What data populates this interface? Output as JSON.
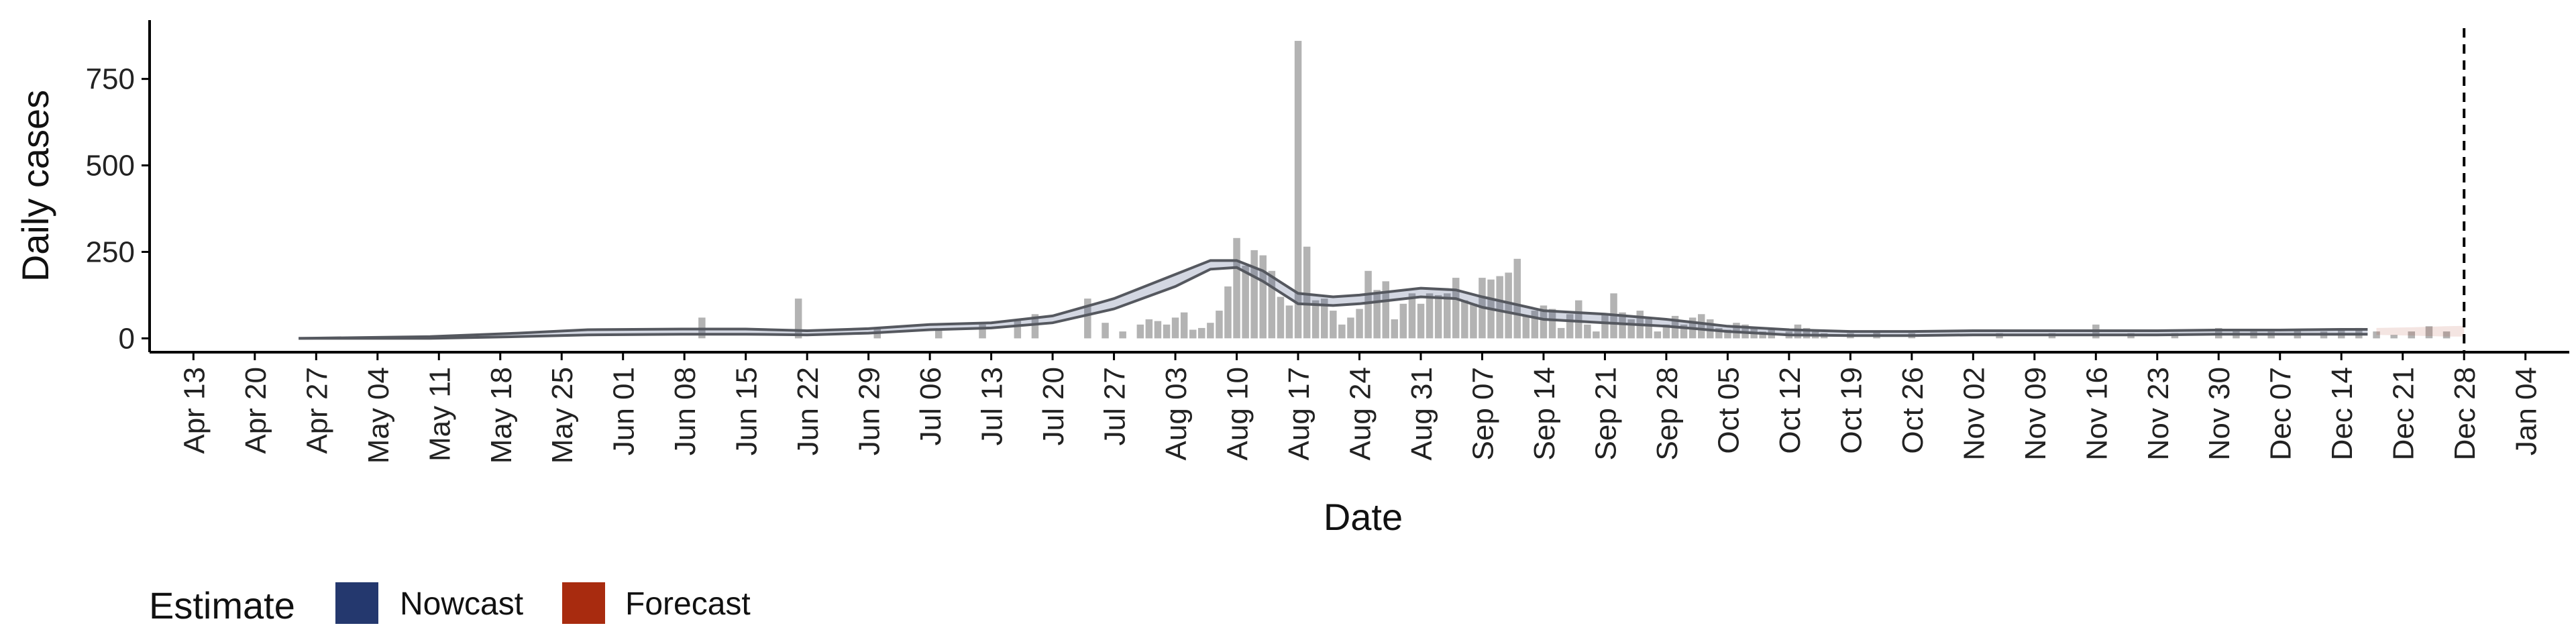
{
  "chart_data": {
    "type": "bar",
    "xlabel": "Date",
    "ylabel": "Daily cases",
    "ylim": [
      -40,
      920
    ],
    "yticks": [
      0,
      250,
      500,
      750
    ],
    "x_domain": [
      "2020-04-08",
      "2021-01-09"
    ],
    "xticks": [
      "2020-04-13",
      "2020-04-20",
      "2020-04-27",
      "2020-05-04",
      "2020-05-11",
      "2020-05-18",
      "2020-05-25",
      "2020-06-01",
      "2020-06-08",
      "2020-06-15",
      "2020-06-22",
      "2020-06-29",
      "2020-07-06",
      "2020-07-13",
      "2020-07-20",
      "2020-07-27",
      "2020-08-03",
      "2020-08-10",
      "2020-08-17",
      "2020-08-24",
      "2020-08-31",
      "2020-09-07",
      "2020-09-14",
      "2020-09-21",
      "2020-09-28",
      "2020-10-05",
      "2020-10-12",
      "2020-10-19",
      "2020-10-26",
      "2020-11-02",
      "2020-11-09",
      "2020-11-16",
      "2020-11-23",
      "2020-11-30",
      "2020-12-07",
      "2020-12-14",
      "2020-12-21",
      "2020-12-28",
      "2021-01-04"
    ],
    "xtick_labels": [
      "Apr 13",
      "Apr 20",
      "Apr 27",
      "May 04",
      "May 11",
      "May 18",
      "May 25",
      "Jun 01",
      "Jun 08",
      "Jun 15",
      "Jun 22",
      "Jun 29",
      "Jul 06",
      "Jul 13",
      "Jul 20",
      "Jul 27",
      "Aug 03",
      "Aug 10",
      "Aug 17",
      "Aug 24",
      "Aug 31",
      "Sep 07",
      "Sep 14",
      "Sep 21",
      "Sep 28",
      "Oct 05",
      "Oct 12",
      "Oct 19",
      "Oct 26",
      "Nov 02",
      "Nov 09",
      "Nov 16",
      "Nov 23",
      "Nov 30",
      "Dec 07",
      "Dec 14",
      "Dec 21",
      "Dec 28",
      "Jan 04"
    ],
    "bars": [
      {
        "date": "2020-06-10",
        "value": 60
      },
      {
        "date": "2020-06-21",
        "value": 115
      },
      {
        "date": "2020-06-30",
        "value": 30
      },
      {
        "date": "2020-07-07",
        "value": 25
      },
      {
        "date": "2020-07-12",
        "value": 40
      },
      {
        "date": "2020-07-16",
        "value": 55
      },
      {
        "date": "2020-07-18",
        "value": 70
      },
      {
        "date": "2020-07-24",
        "value": 115
      },
      {
        "date": "2020-07-26",
        "value": 45
      },
      {
        "date": "2020-07-28",
        "value": 20
      },
      {
        "date": "2020-07-30",
        "value": 40
      },
      {
        "date": "2020-07-31",
        "value": 55
      },
      {
        "date": "2020-08-01",
        "value": 50
      },
      {
        "date": "2020-08-02",
        "value": 40
      },
      {
        "date": "2020-08-03",
        "value": 60
      },
      {
        "date": "2020-08-04",
        "value": 75
      },
      {
        "date": "2020-08-05",
        "value": 25
      },
      {
        "date": "2020-08-06",
        "value": 30
      },
      {
        "date": "2020-08-07",
        "value": 45
      },
      {
        "date": "2020-08-08",
        "value": 80
      },
      {
        "date": "2020-08-09",
        "value": 150
      },
      {
        "date": "2020-08-10",
        "value": 290
      },
      {
        "date": "2020-08-11",
        "value": 210
      },
      {
        "date": "2020-08-12",
        "value": 255
      },
      {
        "date": "2020-08-13",
        "value": 240
      },
      {
        "date": "2020-08-14",
        "value": 195
      },
      {
        "date": "2020-08-15",
        "value": 120
      },
      {
        "date": "2020-08-16",
        "value": 95
      },
      {
        "date": "2020-08-17",
        "value": 860
      },
      {
        "date": "2020-08-18",
        "value": 265
      },
      {
        "date": "2020-08-19",
        "value": 110
      },
      {
        "date": "2020-08-20",
        "value": 115
      },
      {
        "date": "2020-08-21",
        "value": 80
      },
      {
        "date": "2020-08-22",
        "value": 40
      },
      {
        "date": "2020-08-23",
        "value": 60
      },
      {
        "date": "2020-08-24",
        "value": 85
      },
      {
        "date": "2020-08-25",
        "value": 195
      },
      {
        "date": "2020-08-26",
        "value": 140
      },
      {
        "date": "2020-08-27",
        "value": 165
      },
      {
        "date": "2020-08-28",
        "value": 55
      },
      {
        "date": "2020-08-29",
        "value": 100
      },
      {
        "date": "2020-08-30",
        "value": 130
      },
      {
        "date": "2020-08-31",
        "value": 100
      },
      {
        "date": "2020-09-01",
        "value": 130
      },
      {
        "date": "2020-09-02",
        "value": 125
      },
      {
        "date": "2020-09-03",
        "value": 130
      },
      {
        "date": "2020-09-04",
        "value": 175
      },
      {
        "date": "2020-09-05",
        "value": 110
      },
      {
        "date": "2020-09-06",
        "value": 100
      },
      {
        "date": "2020-09-07",
        "value": 175
      },
      {
        "date": "2020-09-08",
        "value": 170
      },
      {
        "date": "2020-09-09",
        "value": 180
      },
      {
        "date": "2020-09-10",
        "value": 190
      },
      {
        "date": "2020-09-11",
        "value": 230
      },
      {
        "date": "2020-09-12",
        "value": 65
      },
      {
        "date": "2020-09-13",
        "value": 80
      },
      {
        "date": "2020-09-14",
        "value": 95
      },
      {
        "date": "2020-09-15",
        "value": 85
      },
      {
        "date": "2020-09-16",
        "value": 30
      },
      {
        "date": "2020-09-17",
        "value": 70
      },
      {
        "date": "2020-09-18",
        "value": 110
      },
      {
        "date": "2020-09-19",
        "value": 40
      },
      {
        "date": "2020-09-20",
        "value": 20
      },
      {
        "date": "2020-09-21",
        "value": 70
      },
      {
        "date": "2020-09-22",
        "value": 130
      },
      {
        "date": "2020-09-23",
        "value": 75
      },
      {
        "date": "2020-09-24",
        "value": 55
      },
      {
        "date": "2020-09-25",
        "value": 80
      },
      {
        "date": "2020-09-26",
        "value": 60
      },
      {
        "date": "2020-09-27",
        "value": 20
      },
      {
        "date": "2020-09-28",
        "value": 40
      },
      {
        "date": "2020-09-29",
        "value": 65
      },
      {
        "date": "2020-09-30",
        "value": 40
      },
      {
        "date": "2020-10-01",
        "value": 60
      },
      {
        "date": "2020-10-02",
        "value": 70
      },
      {
        "date": "2020-10-03",
        "value": 55
      },
      {
        "date": "2020-10-04",
        "value": 30
      },
      {
        "date": "2020-10-05",
        "value": 25
      },
      {
        "date": "2020-10-06",
        "value": 45
      },
      {
        "date": "2020-10-07",
        "value": 40
      },
      {
        "date": "2020-10-08",
        "value": 30
      },
      {
        "date": "2020-10-09",
        "value": 20
      },
      {
        "date": "2020-10-10",
        "value": 25
      },
      {
        "date": "2020-10-12",
        "value": 20
      },
      {
        "date": "2020-10-13",
        "value": 40
      },
      {
        "date": "2020-10-14",
        "value": 30
      },
      {
        "date": "2020-10-15",
        "value": 20
      },
      {
        "date": "2020-10-16",
        "value": 15
      },
      {
        "date": "2020-10-19",
        "value": 15
      },
      {
        "date": "2020-10-22",
        "value": 20
      },
      {
        "date": "2020-10-26",
        "value": 15
      },
      {
        "date": "2020-11-05",
        "value": 15
      },
      {
        "date": "2020-11-11",
        "value": 15
      },
      {
        "date": "2020-11-16",
        "value": 40
      },
      {
        "date": "2020-11-20",
        "value": 15
      },
      {
        "date": "2020-11-25",
        "value": 15
      },
      {
        "date": "2020-11-30",
        "value": 30
      },
      {
        "date": "2020-12-02",
        "value": 25
      },
      {
        "date": "2020-12-04",
        "value": 20
      },
      {
        "date": "2020-12-06",
        "value": 20
      },
      {
        "date": "2020-12-09",
        "value": 25
      },
      {
        "date": "2020-12-12",
        "value": 20
      },
      {
        "date": "2020-12-14",
        "value": 25
      },
      {
        "date": "2020-12-16",
        "value": 30
      },
      {
        "date": "2020-12-18",
        "value": 20
      },
      {
        "date": "2020-12-20",
        "value": 10
      },
      {
        "date": "2020-12-22",
        "value": 20
      },
      {
        "date": "2020-12-24",
        "value": 35
      },
      {
        "date": "2020-12-26",
        "value": 20
      }
    ],
    "series": [
      {
        "name": "Nowcast",
        "color": "#24386e",
        "points": [
          {
            "date": "2020-04-25",
            "lower": 0,
            "upper": 0
          },
          {
            "date": "2020-05-10",
            "lower": 0,
            "upper": 5
          },
          {
            "date": "2020-05-20",
            "lower": 5,
            "upper": 15
          },
          {
            "date": "2020-05-28",
            "lower": 10,
            "upper": 25
          },
          {
            "date": "2020-06-08",
            "lower": 12,
            "upper": 27
          },
          {
            "date": "2020-06-15",
            "lower": 12,
            "upper": 27
          },
          {
            "date": "2020-06-22",
            "lower": 10,
            "upper": 22
          },
          {
            "date": "2020-06-29",
            "lower": 15,
            "upper": 28
          },
          {
            "date": "2020-07-06",
            "lower": 25,
            "upper": 40
          },
          {
            "date": "2020-07-13",
            "lower": 30,
            "upper": 45
          },
          {
            "date": "2020-07-20",
            "lower": 45,
            "upper": 65
          },
          {
            "date": "2020-07-27",
            "lower": 85,
            "upper": 115
          },
          {
            "date": "2020-08-03",
            "lower": 150,
            "upper": 185
          },
          {
            "date": "2020-08-07",
            "lower": 200,
            "upper": 225
          },
          {
            "date": "2020-08-10",
            "lower": 205,
            "upper": 225
          },
          {
            "date": "2020-08-13",
            "lower": 165,
            "upper": 195
          },
          {
            "date": "2020-08-17",
            "lower": 100,
            "upper": 130
          },
          {
            "date": "2020-08-21",
            "lower": 95,
            "upper": 120
          },
          {
            "date": "2020-08-24",
            "lower": 100,
            "upper": 125
          },
          {
            "date": "2020-08-31",
            "lower": 120,
            "upper": 145
          },
          {
            "date": "2020-09-04",
            "lower": 115,
            "upper": 140
          },
          {
            "date": "2020-09-07",
            "lower": 90,
            "upper": 120
          },
          {
            "date": "2020-09-14",
            "lower": 55,
            "upper": 80
          },
          {
            "date": "2020-09-21",
            "lower": 45,
            "upper": 70
          },
          {
            "date": "2020-09-28",
            "lower": 35,
            "upper": 55
          },
          {
            "date": "2020-10-05",
            "lower": 20,
            "upper": 35
          },
          {
            "date": "2020-10-12",
            "lower": 10,
            "upper": 25
          },
          {
            "date": "2020-10-19",
            "lower": 8,
            "upper": 20
          },
          {
            "date": "2020-10-26",
            "lower": 8,
            "upper": 20
          },
          {
            "date": "2020-11-02",
            "lower": 10,
            "upper": 22
          },
          {
            "date": "2020-11-09",
            "lower": 10,
            "upper": 22
          },
          {
            "date": "2020-11-16",
            "lower": 10,
            "upper": 22
          },
          {
            "date": "2020-11-23",
            "lower": 10,
            "upper": 22
          },
          {
            "date": "2020-11-30",
            "lower": 12,
            "upper": 24
          },
          {
            "date": "2020-12-07",
            "lower": 12,
            "upper": 24
          },
          {
            "date": "2020-12-14",
            "lower": 12,
            "upper": 26
          },
          {
            "date": "2020-12-17",
            "lower": 12,
            "upper": 26
          }
        ]
      },
      {
        "name": "Forecast",
        "color": "#a82b0f",
        "points": [
          {
            "date": "2020-12-18",
            "lower": 10,
            "upper": 30
          },
          {
            "date": "2020-12-22",
            "lower": 8,
            "upper": 32
          },
          {
            "date": "2020-12-26",
            "lower": 5,
            "upper": 35
          },
          {
            "date": "2020-12-28",
            "lower": 5,
            "upper": 36
          }
        ]
      }
    ],
    "vline": {
      "date": "2020-12-28",
      "style": "dashed"
    },
    "legend": {
      "title": "Estimate",
      "placement": "bottom-left",
      "entries": [
        {
          "label": "Nowcast",
          "color": "#24386e"
        },
        {
          "label": "Forecast",
          "color": "#a82b0f"
        }
      ]
    },
    "bar_color": "#b3b3b3",
    "grid": false
  }
}
